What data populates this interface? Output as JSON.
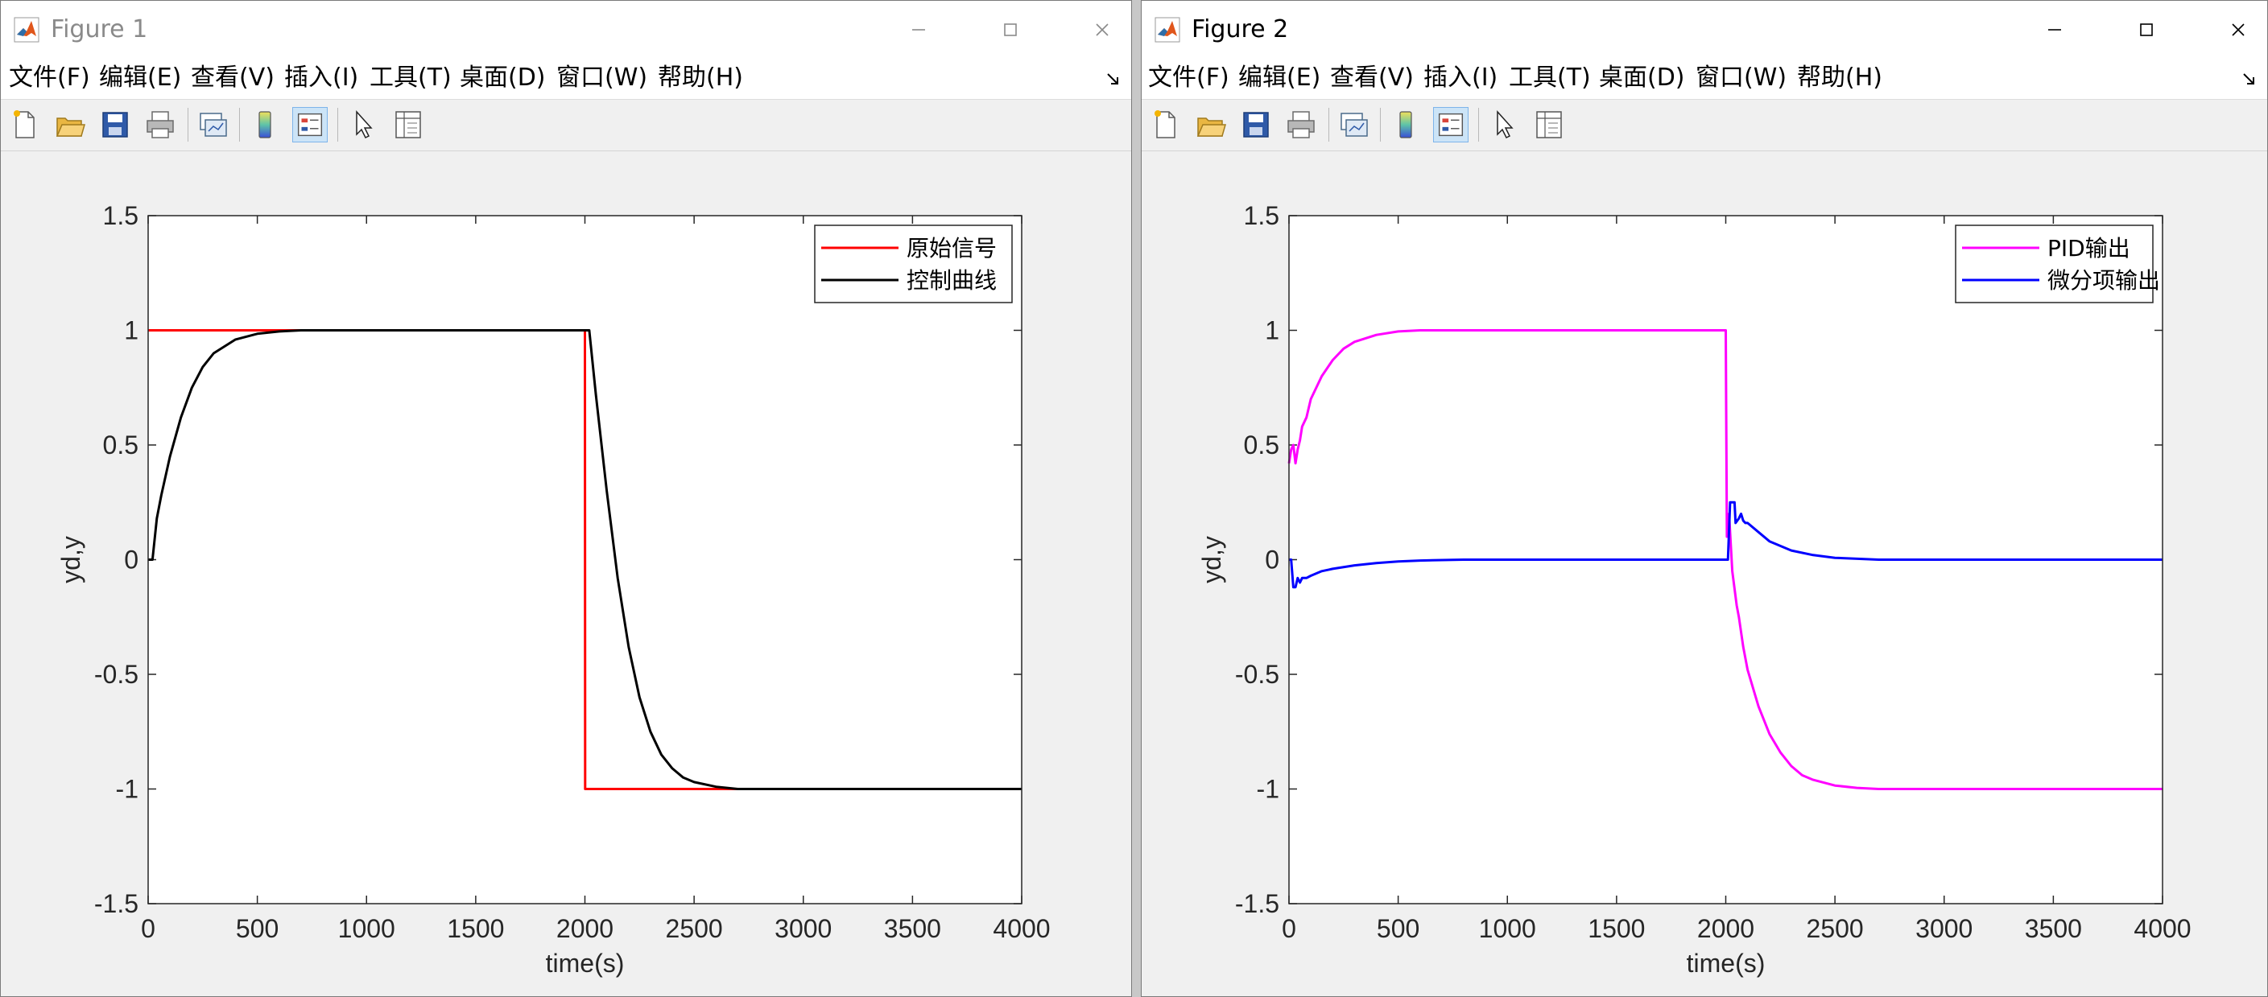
{
  "windows": [
    {
      "title": "Figure 1",
      "menu": [
        "文件(F)",
        "编辑(E)",
        "查看(V)",
        "插入(I)",
        "工具(T)",
        "桌面(D)",
        "窗口(W)",
        "帮助(H)"
      ],
      "toolbar": [
        "new-figure-icon",
        "open-file-icon",
        "save-icon",
        "print-icon",
        "link-plot-icon",
        "colorbar-icon",
        "legend-icon",
        "pointer-icon",
        "property-inspector-icon"
      ],
      "chart_data": {
        "type": "line",
        "xlabel": "time(s)",
        "ylabel": "yd,y",
        "xlim": [
          0,
          4000
        ],
        "ylim": [
          -1.5,
          1.5
        ],
        "xticks": [
          "0",
          "500",
          "1000",
          "1500",
          "2000",
          "2500",
          "3000",
          "3500",
          "4000"
        ],
        "yticks": [
          "-1.5",
          "-1",
          "-0.5",
          "0",
          "0.5",
          "1",
          "1.5"
        ],
        "legend_position": "top-right",
        "series": [
          {
            "name": "原始信号",
            "color": "#ff0000",
            "x": [
              0,
              2000,
              2000,
              2001,
              4000
            ],
            "y": [
              1,
              1,
              1,
              -1,
              -1
            ]
          },
          {
            "name": "控制曲线",
            "color": "#000000",
            "x": [
              0,
              20,
              40,
              60,
              100,
              150,
              200,
              250,
              300,
              400,
              500,
              600,
              700,
              800,
              900,
              1000,
              1500,
              2000,
              2020,
              2050,
              2100,
              2150,
              2200,
              2250,
              2300,
              2350,
              2400,
              2450,
              2500,
              2600,
              2700,
              2800,
              3000,
              3500,
              4000
            ],
            "y": [
              0,
              0,
              0.18,
              0.28,
              0.45,
              0.62,
              0.75,
              0.84,
              0.9,
              0.96,
              0.985,
              0.995,
              1,
              1,
              1,
              1,
              1,
              1,
              1,
              0.72,
              0.3,
              -0.08,
              -0.38,
              -0.6,
              -0.75,
              -0.85,
              -0.91,
              -0.95,
              -0.97,
              -0.99,
              -1,
              -1,
              -1,
              -1,
              -1
            ]
          }
        ]
      }
    },
    {
      "title": "Figure 2",
      "menu": [
        "文件(F)",
        "编辑(E)",
        "查看(V)",
        "插入(I)",
        "工具(T)",
        "桌面(D)",
        "窗口(W)",
        "帮助(H)"
      ],
      "toolbar": [
        "new-figure-icon",
        "open-file-icon",
        "save-icon",
        "print-icon",
        "link-plot-icon",
        "colorbar-icon",
        "legend-icon",
        "pointer-icon",
        "property-inspector-icon"
      ],
      "chart_data": {
        "type": "line",
        "xlabel": "time(s)",
        "ylabel": "yd,y",
        "xlim": [
          0,
          4000
        ],
        "ylim": [
          -1.5,
          1.5
        ],
        "xticks": [
          "0",
          "500",
          "1000",
          "1500",
          "2000",
          "2500",
          "3000",
          "3500",
          "4000"
        ],
        "yticks": [
          "-1.5",
          "-1",
          "-0.5",
          "0",
          "0.5",
          "1",
          "1.5"
        ],
        "legend_position": "top-right",
        "series": [
          {
            "name": "PID输出",
            "color": "#ff00ff",
            "x": [
              0,
              10,
              20,
              30,
              40,
              50,
              60,
              80,
              100,
              150,
              200,
              250,
              300,
              400,
              500,
              600,
              700,
              800,
              1000,
              1500,
              2000,
              2005,
              2015,
              2030,
              2050,
              2060,
              2080,
              2100,
              2150,
              2200,
              2250,
              2300,
              2350,
              2400,
              2500,
              2600,
              2700,
              2800,
              3000,
              3500,
              4000
            ],
            "y": [
              0.42,
              0.48,
              0.5,
              0.42,
              0.48,
              0.52,
              0.58,
              0.62,
              0.7,
              0.8,
              0.87,
              0.92,
              0.95,
              0.98,
              0.995,
              1,
              1,
              1,
              1,
              1,
              1,
              0.1,
              0.2,
              -0.05,
              -0.2,
              -0.25,
              -0.38,
              -0.48,
              -0.64,
              -0.76,
              -0.84,
              -0.9,
              -0.94,
              -0.96,
              -0.985,
              -0.995,
              -1,
              -1,
              -1,
              -1,
              -1
            ]
          },
          {
            "name": "微分项输出",
            "color": "#0000ff",
            "x": [
              0,
              10,
              20,
              30,
              40,
              50,
              60,
              70,
              80,
              100,
              150,
              200,
              300,
              400,
              500,
              600,
              800,
              1000,
              1500,
              2000,
              2010,
              2020,
              2040,
              2045,
              2060,
              2070,
              2080,
              2090,
              2100,
              2150,
              2200,
              2300,
              2400,
              2500,
              2700,
              3000,
              4000
            ],
            "y": [
              0,
              0,
              -0.12,
              -0.12,
              -0.08,
              -0.1,
              -0.08,
              -0.08,
              -0.08,
              -0.07,
              -0.05,
              -0.04,
              -0.025,
              -0.015,
              -0.008,
              -0.004,
              0,
              0,
              0,
              0,
              0,
              0.25,
              0.25,
              0.16,
              0.18,
              0.2,
              0.17,
              0.16,
              0.16,
              0.12,
              0.08,
              0.04,
              0.02,
              0.008,
              0,
              0,
              0
            ]
          }
        ]
      }
    }
  ]
}
